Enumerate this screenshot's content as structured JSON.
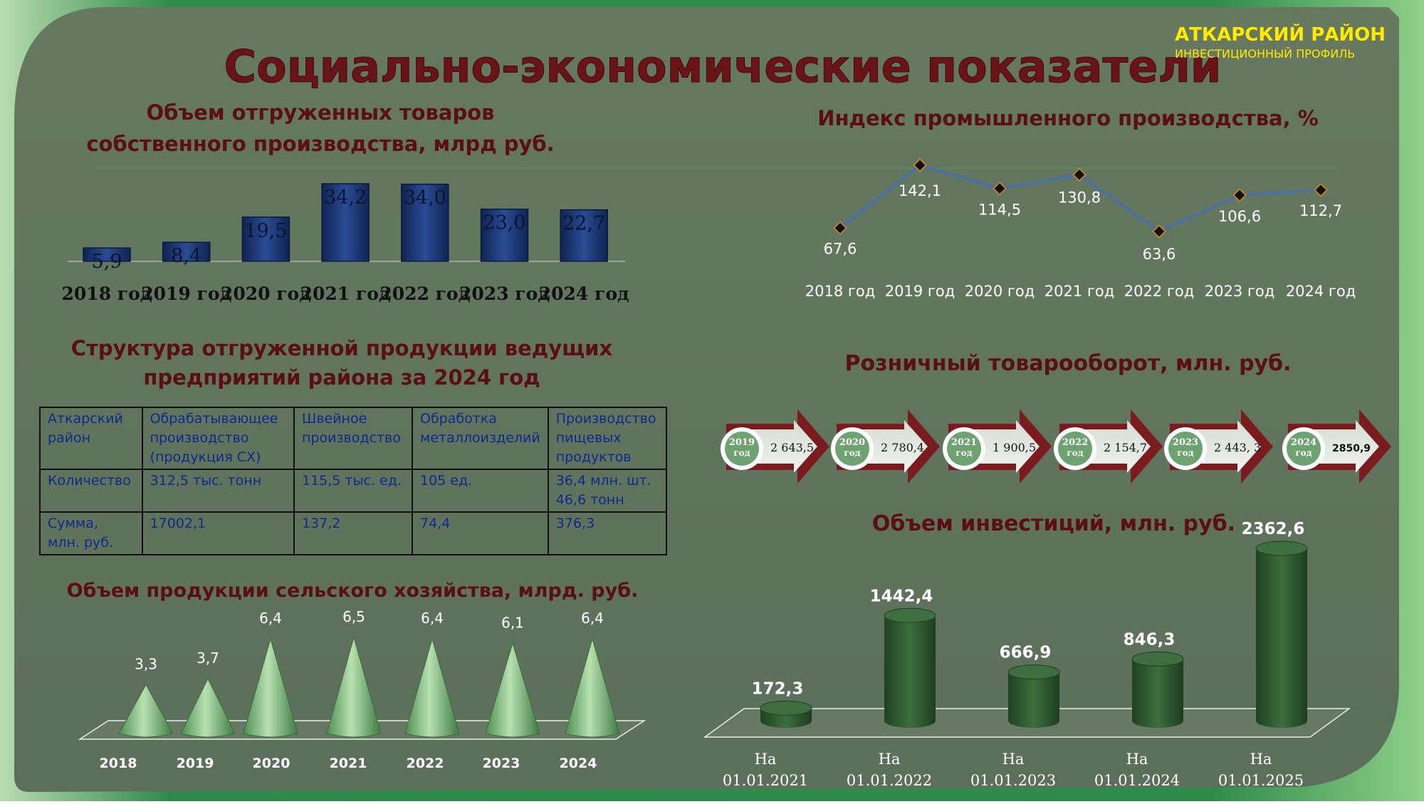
{
  "header": {
    "title": "Социально-экономические показатели",
    "brand_name": "АТКАРСКИЙ РАЙОН",
    "brand_sub": "ИНВЕСТИЦИОННЫЙ ПРОФИЛЬ"
  },
  "colors": {
    "background": "#5f735e",
    "frame_green": "#2e8a49",
    "heading": "#5a0f14",
    "bar_blue": "#1d3a78",
    "cone_green": "#7fbf80",
    "cylinder_green": "#2d5a2f",
    "line": "#4a6fa3"
  },
  "shipments": {
    "title_line1": "Объем отгруженных товаров",
    "title_line2": "собственного производства, млрд руб."
  },
  "industrial_index": {
    "title": "Индекс промышленного производства, %"
  },
  "structure": {
    "title_line1": "Структура отгруженной продукции ведущих",
    "title_line2": "предприятий района за 2024 год",
    "rows": [
      [
        "Аткарский район",
        "Обрабатывающее производство (продукция СХ)",
        "Швейное производство",
        "Обработка металлоизделий",
        "Производство пищевых продуктов"
      ],
      [
        "Количество",
        "312,5 тыс. тонн",
        "115,5 тыс. ед.",
        "105 ед.",
        "36,4 млн. шт. 46,6 тонн"
      ],
      [
        "Сумма, млн. руб.",
        "17002,1",
        "137,2",
        "74,4",
        "376,3"
      ]
    ]
  },
  "retail": {
    "title": "Розничный товарооборот, млн. руб.",
    "items": [
      {
        "year": "2019",
        "unit": "год",
        "value": "2 643,5"
      },
      {
        "year": "2020",
        "unit": "год",
        "value": "2 780,4"
      },
      {
        "year": "2021",
        "unit": "год",
        "value": "1 900,5"
      },
      {
        "year": "2022",
        "unit": "год",
        "value": "2 154,7"
      },
      {
        "year": "2023",
        "unit": "год",
        "value": "2 443, 3"
      },
      {
        "year": "2024",
        "unit": "год",
        "value": "2850,9"
      }
    ]
  },
  "agriculture": {
    "title": "Объем продукции сельского хозяйства, млрд. руб."
  },
  "investment": {
    "title": "Объем инвестиций, млн. руб."
  },
  "chart_data": [
    {
      "type": "bar",
      "title": "Объем отгруженных товаров собственного производства, млрд руб.",
      "categories": [
        "2018 год",
        "2019 год",
        "2020 год",
        "2021 год",
        "2022 год",
        "2023 год",
        "2024 год"
      ],
      "values": [
        5.9,
        8.4,
        19.5,
        34.2,
        34.0,
        23.0,
        22.7
      ],
      "labels": [
        "5,9",
        "8,4",
        "19,5",
        "34,2",
        "34,0",
        "23,0",
        "22,7"
      ]
    },
    {
      "type": "line",
      "title": "Индекс промышленного производства, %",
      "categories": [
        "2018 год",
        "2019 год",
        "2020 год",
        "2021 год",
        "2022 год",
        "2023 год",
        "2024 год"
      ],
      "values": [
        67.6,
        142.1,
        114.5,
        130.8,
        63.6,
        106.6,
        112.7
      ],
      "labels": [
        "67,6",
        "142,1",
        "114,5",
        "130,8",
        "63,6",
        "106,6",
        "112,7"
      ]
    },
    {
      "type": "bar",
      "title": "Объем продукции сельского хозяйства, млрд. руб.",
      "categories": [
        "2018",
        "2019",
        "2020",
        "2021",
        "2022",
        "2023",
        "2024"
      ],
      "values": [
        3.3,
        3.7,
        6.4,
        6.5,
        6.4,
        6.1,
        6.4
      ],
      "labels": [
        "3,3",
        "3,7",
        "6,4",
        "6,5",
        "6,4",
        "6,1",
        "6,4"
      ]
    },
    {
      "type": "bar",
      "title": "Объем инвестиций, млн. руб.",
      "categories": [
        "На 01.01.2021",
        "На 01.01.2022",
        "На 01.01.2023",
        "На 01.01.2024",
        "На 01.01.2025"
      ],
      "values": [
        172.3,
        1442.4,
        666.9,
        846.3,
        2362.6
      ],
      "labels": [
        "172,3",
        "1442,4",
        "666,9",
        "846,3",
        "2362,6"
      ]
    }
  ]
}
